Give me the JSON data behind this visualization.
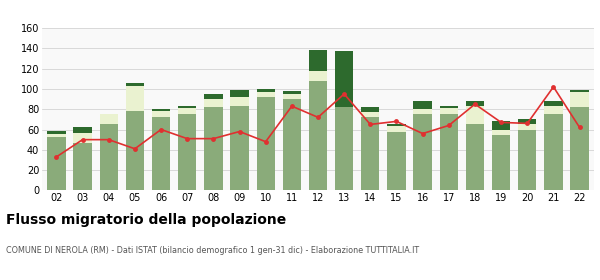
{
  "years": [
    "02",
    "03",
    "04",
    "05",
    "06",
    "07",
    "08",
    "09",
    "10",
    "11",
    "12",
    "13",
    "14",
    "15",
    "16",
    "17",
    "18",
    "19",
    "20",
    "21",
    "22"
  ],
  "iscritti_altri_comuni": [
    53,
    47,
    65,
    78,
    72,
    75,
    82,
    83,
    92,
    90,
    108,
    82,
    72,
    58,
    75,
    75,
    65,
    55,
    60,
    75,
    82
  ],
  "iscritti_estero": [
    3,
    10,
    10,
    25,
    6,
    6,
    8,
    9,
    5,
    5,
    10,
    0,
    5,
    5,
    5,
    6,
    18,
    5,
    5,
    8,
    15
  ],
  "iscritti_altri": [
    3,
    5,
    0,
    3,
    2,
    2,
    5,
    7,
    3,
    3,
    20,
    55,
    5,
    2,
    8,
    2,
    5,
    8,
    5,
    5,
    2
  ],
  "cancellati": [
    33,
    50,
    50,
    41,
    60,
    51,
    51,
    58,
    48,
    83,
    72,
    95,
    65,
    68,
    56,
    64,
    85,
    67,
    66,
    102,
    62
  ],
  "color_altri_comuni": "#8aab7a",
  "color_estero": "#eaf2d0",
  "color_altri": "#2d6a2d",
  "color_cancellati": "#e03030",
  "title": "Flusso migratorio della popolazione",
  "subtitle": "COMUNE DI NEROLA (RM) - Dati ISTAT (bilancio demografico 1 gen-31 dic) - Elaborazione TUTTITALIA.IT",
  "ylim": [
    0,
    160
  ],
  "yticks": [
    0,
    20,
    40,
    60,
    80,
    100,
    120,
    140,
    160
  ],
  "bg_color": "#f9f9f9",
  "grid_color": "#cccccc"
}
